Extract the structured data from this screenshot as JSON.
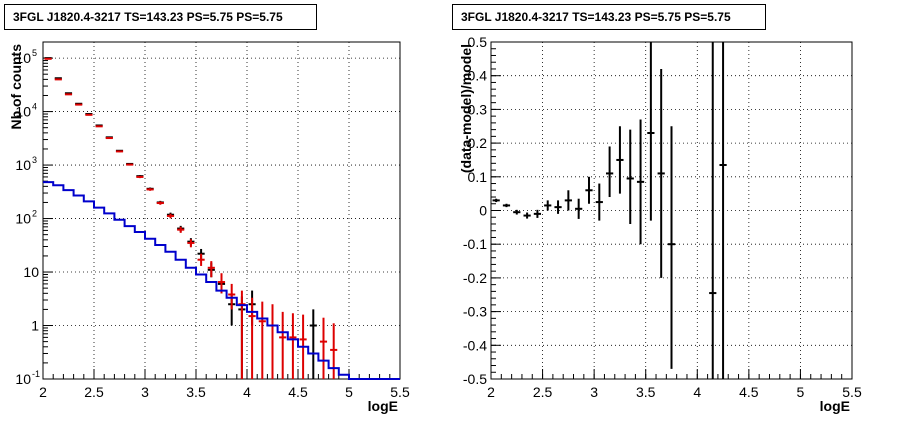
{
  "chart_data": [
    {
      "type": "histogram",
      "title": "3FGL J1820.4-3217 TS=143.23 PS=5.75 PS=5.75",
      "xlabel": "logE",
      "ylabel": "Nb of counts",
      "xlim": [
        2,
        5.5
      ],
      "ylim": [
        0.1,
        200000
      ],
      "yscale": "log",
      "grid": true,
      "xticks": [
        "2",
        "2.5",
        "3",
        "3.5",
        "4",
        "4.5",
        "5",
        "5.5"
      ],
      "yticks": [
        {
          "v": 0.1,
          "label": "10",
          "exp": "-1"
        },
        {
          "v": 1,
          "label": "1",
          "exp": ""
        },
        {
          "v": 10,
          "label": "10",
          "exp": ""
        },
        {
          "v": 100,
          "label": "10",
          "exp": "2"
        },
        {
          "v": 1000,
          "label": "10",
          "exp": "3"
        },
        {
          "v": 10000,
          "label": "10",
          "exp": "4"
        },
        {
          "v": 100000,
          "label": "10",
          "exp": "5"
        }
      ],
      "bin_width": 0.1,
      "series": [
        {
          "color": "#000000",
          "points": [
            {
              "x": 2.05,
              "y": 100000,
              "lo": 99000,
              "hi": 101000
            },
            {
              "x": 2.15,
              "y": 42000,
              "lo": 41400,
              "hi": 42600
            },
            {
              "x": 2.25,
              "y": 22000,
              "lo": 21600,
              "hi": 22400
            },
            {
              "x": 2.35,
              "y": 14000,
              "lo": 13700,
              "hi": 14300
            },
            {
              "x": 2.45,
              "y": 9000,
              "lo": 8800,
              "hi": 9200
            },
            {
              "x": 2.55,
              "y": 5500,
              "lo": 5350,
              "hi": 5650
            },
            {
              "x": 2.65,
              "y": 3300,
              "lo": 3200,
              "hi": 3400
            },
            {
              "x": 2.75,
              "y": 1850,
              "lo": 1790,
              "hi": 1910
            },
            {
              "x": 2.85,
              "y": 1050,
              "lo": 1010,
              "hi": 1090
            },
            {
              "x": 2.95,
              "y": 620,
              "lo": 590,
              "hi": 650
            },
            {
              "x": 3.05,
              "y": 360,
              "lo": 340,
              "hi": 380
            },
            {
              "x": 3.15,
              "y": 200,
              "lo": 186,
              "hi": 214
            },
            {
              "x": 3.25,
              "y": 118,
              "lo": 107,
              "hi": 129
            },
            {
              "x": 3.35,
              "y": 65,
              "lo": 57,
              "hi": 73
            },
            {
              "x": 3.45,
              "y": 37,
              "lo": 31,
              "hi": 43
            },
            {
              "x": 3.55,
              "y": 22,
              "lo": 17,
              "hi": 27
            },
            {
              "x": 3.65,
              "y": 11,
              "lo": 8,
              "hi": 15
            },
            {
              "x": 3.75,
              "y": 6,
              "lo": 4,
              "hi": 9
            },
            {
              "x": 3.85,
              "y": 2.5,
              "lo": 1,
              "hi": 4
            },
            {
              "x": 3.95,
              "y": 2,
              "lo": 0.1,
              "hi": 3.5
            },
            {
              "x": 4.05,
              "y": 2.5,
              "lo": 1,
              "hi": 4.5
            },
            {
              "x": 4.65,
              "y": 1,
              "lo": 0.1,
              "hi": 2
            }
          ]
        },
        {
          "color": "#dd0000",
          "points": [
            {
              "x": 2.05,
              "y": 97000,
              "lo": 96000,
              "hi": 98000
            },
            {
              "x": 2.15,
              "y": 40000,
              "lo": 39400,
              "hi": 40600
            },
            {
              "x": 2.25,
              "y": 21000,
              "lo": 20600,
              "hi": 21400
            },
            {
              "x": 2.35,
              "y": 13500,
              "lo": 13200,
              "hi": 13800
            },
            {
              "x": 2.45,
              "y": 8700,
              "lo": 8500,
              "hi": 8900
            },
            {
              "x": 2.55,
              "y": 5300,
              "lo": 5150,
              "hi": 5450
            },
            {
              "x": 2.65,
              "y": 3200,
              "lo": 3100,
              "hi": 3300
            },
            {
              "x": 2.75,
              "y": 1800,
              "lo": 1740,
              "hi": 1860
            },
            {
              "x": 2.85,
              "y": 1020,
              "lo": 980,
              "hi": 1060
            },
            {
              "x": 2.95,
              "y": 600,
              "lo": 570,
              "hi": 630
            },
            {
              "x": 3.05,
              "y": 350,
              "lo": 330,
              "hi": 370
            },
            {
              "x": 3.15,
              "y": 195,
              "lo": 181,
              "hi": 209
            },
            {
              "x": 3.25,
              "y": 112,
              "lo": 101,
              "hi": 123
            },
            {
              "x": 3.35,
              "y": 62,
              "lo": 54,
              "hi": 70
            },
            {
              "x": 3.45,
              "y": 35,
              "lo": 29,
              "hi": 41
            },
            {
              "x": 3.55,
              "y": 17,
              "lo": 13,
              "hi": 22
            },
            {
              "x": 3.65,
              "y": 12,
              "lo": 8,
              "hi": 16
            },
            {
              "x": 3.75,
              "y": 6.5,
              "lo": 4,
              "hi": 9.5
            },
            {
              "x": 3.85,
              "y": 3.8,
              "lo": 2,
              "hi": 6
            },
            {
              "x": 3.95,
              "y": 2.5,
              "lo": 0.1,
              "hi": 4.5
            },
            {
              "x": 4.05,
              "y": 1.5,
              "lo": 0.1,
              "hi": 3.3
            },
            {
              "x": 4.15,
              "y": 1.2,
              "lo": 0.1,
              "hi": 2.8
            },
            {
              "x": 4.25,
              "y": 1,
              "lo": 0.1,
              "hi": 2.5
            },
            {
              "x": 4.35,
              "y": 0.6,
              "lo": 0.1,
              "hi": 1.8
            },
            {
              "x": 4.45,
              "y": 0.6,
              "lo": 0.1,
              "hi": 1.7
            },
            {
              "x": 4.55,
              "y": 0.55,
              "lo": 0.1,
              "hi": 1.6
            },
            {
              "x": 4.75,
              "y": 0.5,
              "lo": 0.1,
              "hi": 1.4
            },
            {
              "x": 4.85,
              "y": 0.35,
              "lo": 0.1,
              "hi": 1.1
            }
          ]
        },
        {
          "color": "#0000cc",
          "step": true,
          "x": [
            2.0,
            2.1,
            2.2,
            2.3,
            2.4,
            2.5,
            2.6,
            2.7,
            2.8,
            2.9,
            3.0,
            3.1,
            3.2,
            3.3,
            3.4,
            3.5,
            3.6,
            3.7,
            3.8,
            3.9,
            4.0,
            4.1,
            4.2,
            4.3,
            4.4,
            4.5,
            4.6,
            4.7,
            4.8,
            4.9,
            5.0,
            5.1,
            5.2,
            5.3,
            5.4
          ],
          "y": [
            480,
            420,
            340,
            270,
            210,
            160,
            125,
            95,
            72,
            56,
            42,
            32,
            24,
            17,
            12,
            9,
            6.5,
            4.5,
            3.3,
            2.4,
            1.8,
            1.35,
            1.0,
            0.75,
            0.55,
            0.4,
            0.3,
            0.22,
            0.16,
            0.12,
            0.1,
            0.1,
            0.1,
            0.1,
            0.1
          ]
        }
      ]
    },
    {
      "type": "scatter",
      "title": "3FGL J1820.4-3217 TS=143.23 PS=5.75 PS=5.75",
      "xlabel": "logE",
      "ylabel": "(data-model)/model",
      "xlim": [
        2,
        5.5
      ],
      "ylim": [
        -0.5,
        0.5
      ],
      "grid": true,
      "xticks": [
        "2",
        "2.5",
        "3",
        "3.5",
        "4",
        "4.5",
        "5",
        "5.5"
      ],
      "yticks": [
        "-0.5",
        "-0.4",
        "-0.3",
        "-0.2",
        "-0.1",
        "0",
        "0.1",
        "0.2",
        "0.3",
        "0.4",
        "0.5"
      ],
      "bin_width": 0.1,
      "points": [
        {
          "x": 2.05,
          "y": 0.03,
          "lo": 0.025,
          "hi": 0.035
        },
        {
          "x": 2.15,
          "y": 0.015,
          "lo": 0.01,
          "hi": 0.02
        },
        {
          "x": 2.25,
          "y": -0.005,
          "lo": -0.012,
          "hi": 0.002
        },
        {
          "x": 2.35,
          "y": -0.015,
          "lo": -0.024,
          "hi": -0.006
        },
        {
          "x": 2.45,
          "y": -0.01,
          "lo": -0.022,
          "hi": 0.002
        },
        {
          "x": 2.55,
          "y": 0.015,
          "lo": 0.0,
          "hi": 0.03
        },
        {
          "x": 2.65,
          "y": 0.01,
          "lo": -0.01,
          "hi": 0.03
        },
        {
          "x": 2.75,
          "y": 0.03,
          "lo": 0.0,
          "hi": 0.06
        },
        {
          "x": 2.85,
          "y": 0.005,
          "lo": -0.025,
          "hi": 0.035
        },
        {
          "x": 2.95,
          "y": 0.06,
          "lo": 0.02,
          "hi": 0.1
        },
        {
          "x": 3.05,
          "y": 0.025,
          "lo": -0.03,
          "hi": 0.08
        },
        {
          "x": 3.15,
          "y": 0.11,
          "lo": 0.04,
          "hi": 0.19
        },
        {
          "x": 3.25,
          "y": 0.15,
          "lo": 0.05,
          "hi": 0.25
        },
        {
          "x": 3.35,
          "y": 0.095,
          "lo": -0.04,
          "hi": 0.24
        },
        {
          "x": 3.45,
          "y": 0.085,
          "lo": -0.1,
          "hi": 0.27
        },
        {
          "x": 3.55,
          "y": 0.23,
          "lo": -0.03,
          "hi": 0.5
        },
        {
          "x": 3.65,
          "y": 0.11,
          "lo": -0.2,
          "hi": 0.42
        },
        {
          "x": 3.75,
          "y": -0.1,
          "lo": -0.47,
          "hi": 0.25
        },
        {
          "x": 4.15,
          "y": -0.245,
          "lo": -0.5,
          "hi": 0.5
        },
        {
          "x": 4.25,
          "y": 0.135,
          "lo": -0.5,
          "hi": 0.5
        }
      ]
    }
  ]
}
